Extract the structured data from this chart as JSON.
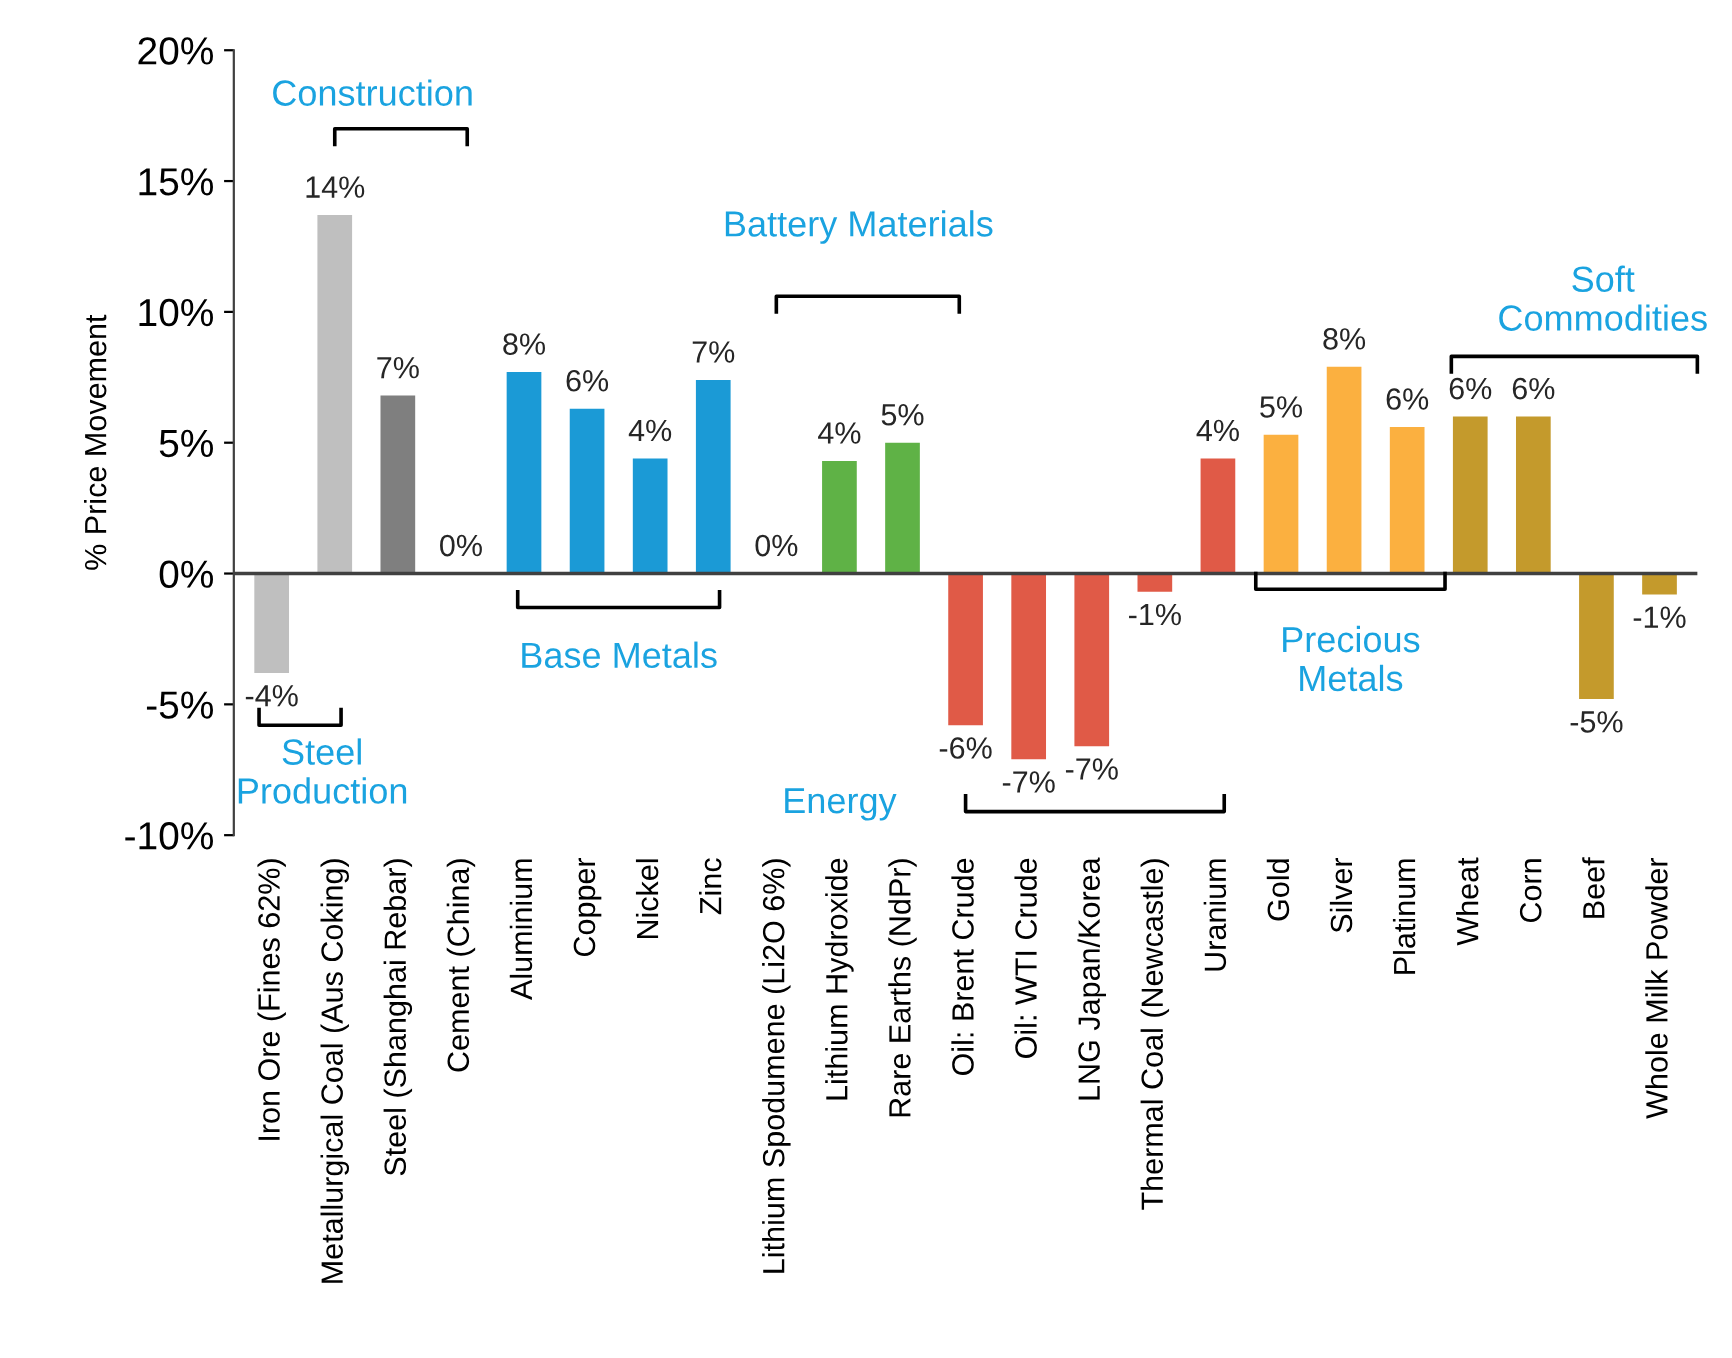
{
  "chart_data": {
    "type": "bar",
    "ylabel": "% Price Movement",
    "categories": [
      "Iron Ore (Fines 62%)",
      "Metallurgical Coal (Aus Coking)",
      "Steel (Shanghai Rebar)",
      "Cement (China)",
      "Aluminium",
      "Copper",
      "Nickel",
      "Zinc",
      "Lithium Spodumene (Li2O 6%)",
      "Lithium Hydroxide",
      "Rare Earths (NdPr)",
      "Oil: Brent Crude",
      "Oil: WTI Crude",
      "LNG Japan/Korea",
      "Thermal Coal (Newcastle)",
      "Uranium",
      "Gold",
      "Silver",
      "Platinum",
      "Wheat",
      "Corn",
      "Beef",
      "Whole Milk Powder"
    ],
    "values": [
      -3.8,
      13.7,
      6.8,
      0,
      7.7,
      6.3,
      4.4,
      7.4,
      0,
      4.3,
      5.0,
      -5.8,
      -7.1,
      -6.6,
      -0.7,
      4.4,
      5.3,
      7.9,
      5.6,
      6.0,
      6.0,
      -4.8,
      -0.8
    ],
    "value_labels": [
      "-4%",
      "14%",
      "7%",
      "0%",
      "8%",
      "6%",
      "4%",
      "7%",
      "0%",
      "4%",
      "5%",
      "-6%",
      "-7%",
      "-7%",
      "-1%",
      "4%",
      "5%",
      "8%",
      "6%",
      "6%",
      "6%",
      "-5%",
      "-1%"
    ],
    "colors": [
      "#bfbfbf",
      "#bfbfbf",
      "#7f7f7f",
      "#7f7f7f",
      "#1b9ad6",
      "#1b9ad6",
      "#1b9ad6",
      "#1b9ad6",
      "#5fb246",
      "#5fb246",
      "#5fb246",
      "#e05a47",
      "#e05a47",
      "#e05a47",
      "#e05a47",
      "#e05a47",
      "#fbb040",
      "#fbb040",
      "#fbb040",
      "#c49a2c",
      "#c49a2c",
      "#c49a2c",
      "#c49a2c"
    ],
    "ylim": [
      -10,
      20
    ],
    "yticks": [
      {
        "value": -10,
        "label": "-10%"
      },
      {
        "value": -5,
        "label": "-5%"
      },
      {
        "value": 0,
        "label": "0%"
      },
      {
        "value": 5,
        "label": "5%"
      },
      {
        "value": 10,
        "label": "10%"
      },
      {
        "value": 15,
        "label": "15%"
      },
      {
        "value": 20,
        "label": "20%"
      }
    ],
    "grid": false,
    "legend": false,
    "ref_lines": [
      {
        "axis": "y",
        "value": 0,
        "color": "#404040"
      }
    ],
    "annotations": [
      "Steel\nProduction",
      "Construction",
      "Base Metals",
      "Battery Materials",
      "Energy",
      "Precious\nMetals",
      "Soft\nCommodities"
    ]
  }
}
